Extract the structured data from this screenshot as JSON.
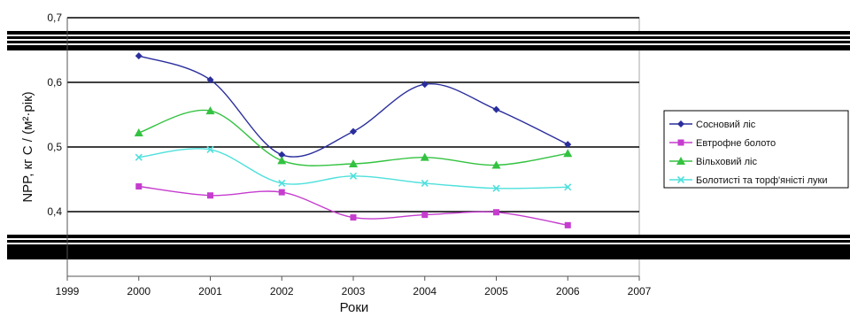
{
  "chart_data": {
    "type": "line",
    "xlabel": "Роки",
    "ylabel": "NPP, кг С / (м²·рік)",
    "xlim": [
      1999,
      2007
    ],
    "ylim": [
      0.3,
      0.7
    ],
    "x_ticks": [
      "1999",
      "2000",
      "2001",
      "2002",
      "2003",
      "2004",
      "2005",
      "2006",
      "2007"
    ],
    "y_ticks": [
      "0,4",
      "0,5",
      "0,6",
      "0,7"
    ],
    "grid": true,
    "legend_position": "right",
    "x": [
      2000,
      2001,
      2002,
      2003,
      2004,
      2005,
      2006
    ],
    "series": [
      {
        "name": "Сосновий ліс",
        "color": "#2a2e9c",
        "marker": "diamond",
        "values": [
          0.641,
          0.604,
          0.488,
          0.524,
          0.597,
          0.558,
          0.504
        ]
      },
      {
        "name": "Евтрофне болото",
        "color": "#c53ccf",
        "marker": "square",
        "values": [
          0.439,
          0.425,
          0.43,
          0.391,
          0.395,
          0.399,
          0.379
        ]
      },
      {
        "name": "Вільховий ліс",
        "color": "#33c240",
        "marker": "triangle",
        "values": [
          0.522,
          0.556,
          0.479,
          0.474,
          0.484,
          0.472,
          0.49
        ]
      },
      {
        "name": "Болотисті та торф'яністі луки",
        "color": "#4ee0dc",
        "marker": "x",
        "values": [
          0.484,
          0.496,
          0.444,
          0.455,
          0.444,
          0.436,
          0.438
        ]
      }
    ]
  }
}
